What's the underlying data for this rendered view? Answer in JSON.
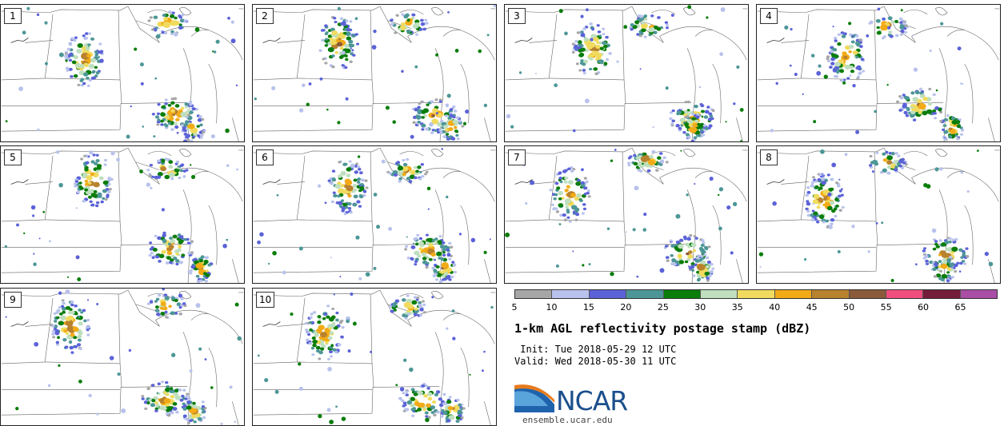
{
  "panels": [
    {
      "label": "1"
    },
    {
      "label": "2"
    },
    {
      "label": "3"
    },
    {
      "label": "4"
    },
    {
      "label": "5"
    },
    {
      "label": "6"
    },
    {
      "label": "7"
    },
    {
      "label": "8"
    },
    {
      "label": "9"
    },
    {
      "label": "10"
    }
  ],
  "colorbar": {
    "colors": [
      "#a6a6a6",
      "#b8c2ec",
      "#5b62d8",
      "#4d9697",
      "#0a7d0a",
      "#bfdfbf",
      "#f0db5e",
      "#f2ab17",
      "#b8822e",
      "#8a5a3b",
      "#f04f7e",
      "#731d3a",
      "#a84ea5"
    ],
    "ticks": [
      "5",
      "10",
      "15",
      "20",
      "25",
      "30",
      "35",
      "40",
      "45",
      "50",
      "55",
      "60",
      "65"
    ]
  },
  "title": "1-km AGL reflectivity postage stamp (dBZ)",
  "init": " Init: Tue 2018-05-29 12 UTC",
  "valid": "Valid: Wed 2018-05-30 11 UTC",
  "logo": {
    "text": "NCAR",
    "website": "ensemble.ucar.edu"
  }
}
